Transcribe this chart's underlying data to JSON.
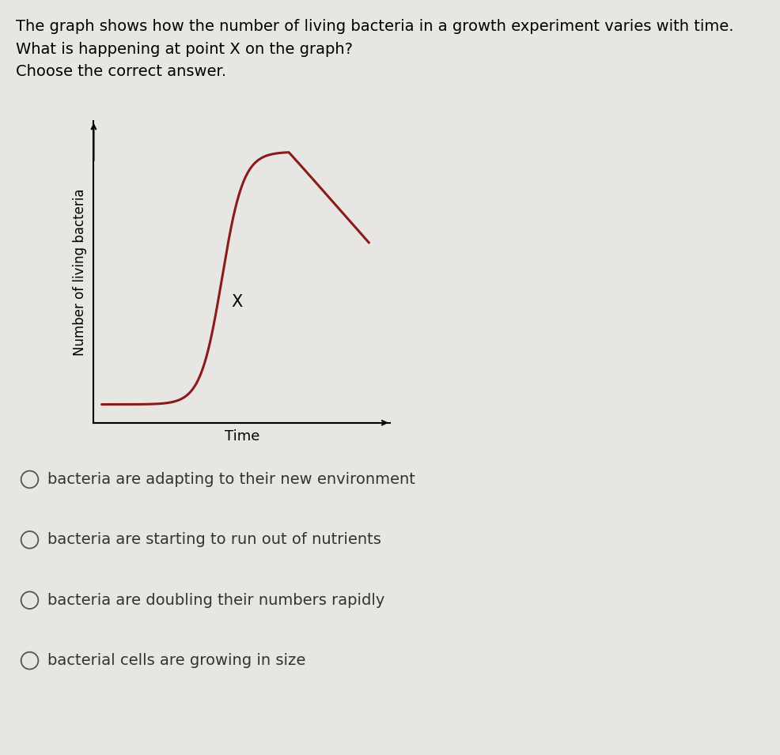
{
  "title_line1": "The graph shows how the number of living bacteria in a growth experiment varies with time.",
  "title_line2": "What is happening at point X on the graph?",
  "title_line3": "Choose the correct answer.",
  "xlabel": "Time",
  "ylabel": "Number of living bacteria",
  "curve_color": "#8B1A1A",
  "background_color": "#e8e6e3",
  "x_label_point": "X",
  "options": [
    "bacteria are adapting to their new environment",
    "bacteria are starting to run out of nutrients",
    "bacteria are doubling their numbers rapidly",
    "bacterial cells are growing in size"
  ],
  "title_fontsize": 14,
  "axis_label_fontsize": 12,
  "option_fontsize": 14
}
